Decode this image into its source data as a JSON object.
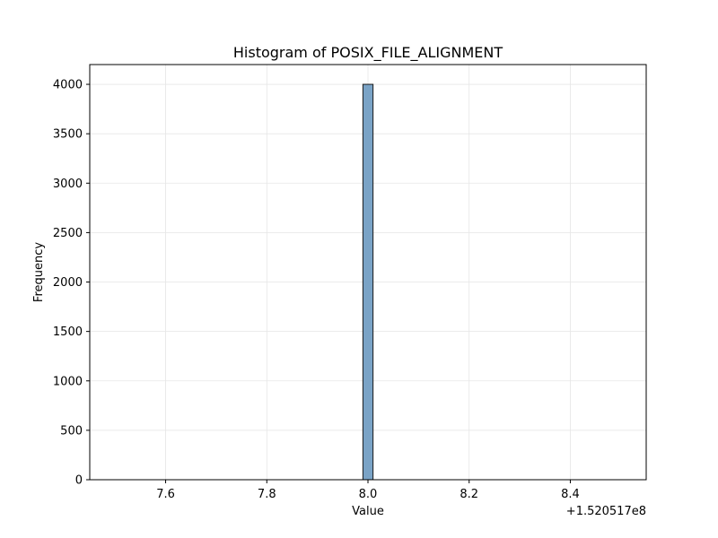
{
  "chart_data": {
    "type": "bar",
    "title": "Histogram of POSIX_FILE_ALIGNMENT",
    "xlabel": "Value",
    "ylabel": "Frequency",
    "x_offset_label": "+1.520517e8",
    "x_offset": 152051700,
    "xlim": [
      7.45,
      8.55
    ],
    "ylim": [
      0,
      4200
    ],
    "xticks": [
      7.6,
      7.8,
      8.0,
      8.2,
      8.4
    ],
    "xtick_labels": [
      "7.6",
      "7.8",
      "8.0",
      "8.2",
      "8.4"
    ],
    "yticks": [
      0,
      500,
      1000,
      1500,
      2000,
      2500,
      3000,
      3500,
      4000
    ],
    "ytick_labels": [
      "0",
      "500",
      "1000",
      "1500",
      "2000",
      "2500",
      "3000",
      "3500",
      "4000"
    ],
    "grid": true,
    "bins": [
      {
        "x_start": 7.99,
        "x_end": 8.01,
        "count": 4000
      }
    ],
    "colors": {
      "bar_fill": "#7aa3c6",
      "bar_edge": "#1a1a1a",
      "grid": "#e6e6e6"
    }
  }
}
